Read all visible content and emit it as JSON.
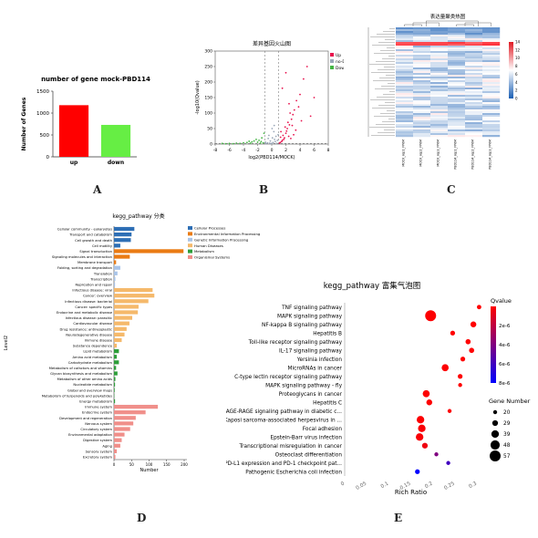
{
  "panel_labels": [
    "A",
    "B",
    "C",
    "D",
    "E"
  ],
  "chart_data": [
    {
      "id": "A",
      "type": "bar",
      "title": "number of gene mock-PBD114",
      "xlabel": "",
      "ylabel": "Number of Genes",
      "categories": [
        "up",
        "down"
      ],
      "values": [
        1180,
        730
      ],
      "colors": [
        "#ff0000",
        "#66ee44"
      ],
      "ylim": [
        0,
        1500
      ],
      "yticks": [
        "0",
        "500",
        "1000",
        "1500"
      ]
    },
    {
      "id": "B",
      "type": "scatter",
      "title": "差异基因火山图",
      "xlabel": "log2(PBD114/MOCK)",
      "ylabel": "-log10(Qvalue)",
      "xlim": [
        -8,
        8
      ],
      "ylim": [
        0,
        300
      ],
      "xticks": [
        "-8",
        "-6",
        "-4",
        "-2",
        "0",
        "2",
        "4",
        "6",
        "8"
      ],
      "yticks": [
        "0",
        "50",
        "100",
        "150",
        "200",
        "250",
        "300"
      ],
      "legend": [
        "Up",
        "no-DEGS",
        "Down"
      ],
      "legend_colors": [
        "#e8114d",
        "#9aa7b8",
        "#44b544"
      ],
      "legend_position": "top-right",
      "series": [
        {
          "name": "Up",
          "points": [
            [
              1.2,
              5
            ],
            [
              1.5,
              12
            ],
            [
              1.8,
              20
            ],
            [
              2,
              35
            ],
            [
              2.2,
              50
            ],
            [
              2.5,
              62
            ],
            [
              1.4,
              8
            ],
            [
              1.7,
              15
            ],
            [
              2.8,
              80
            ],
            [
              3,
              95
            ],
            [
              1.6,
              28
            ],
            [
              2.1,
              42
            ],
            [
              2.4,
              25
            ],
            [
              3.2,
              110
            ],
            [
              3.5,
              140
            ],
            [
              2.7,
              18
            ],
            [
              1.9,
              55
            ],
            [
              2.3,
              70
            ],
            [
              4,
              160
            ],
            [
              4.5,
              210
            ],
            [
              5,
              250
            ],
            [
              3.8,
              120
            ],
            [
              2.6,
              100
            ],
            [
              1.3,
              40
            ],
            [
              1.1,
              3
            ],
            [
              3.1,
              30
            ],
            [
              2.9,
              60
            ],
            [
              5.5,
              90
            ],
            [
              4.2,
              75
            ],
            [
              1.5,
              180
            ],
            [
              2,
              230
            ],
            [
              6,
              150
            ],
            [
              3.4,
              45
            ],
            [
              1.25,
              22
            ],
            [
              2.45,
              130
            ]
          ]
        },
        {
          "name": "no-DEGS",
          "points": [
            [
              0,
              2
            ],
            [
              0.2,
              5
            ],
            [
              -0.3,
              3
            ],
            [
              0.5,
              8
            ],
            [
              -0.6,
              4
            ],
            [
              0.8,
              12
            ],
            [
              -0.9,
              6
            ],
            [
              0.1,
              20
            ],
            [
              0.4,
              15
            ],
            [
              -0.2,
              10
            ],
            [
              0.6,
              25
            ],
            [
              -0.5,
              18
            ],
            [
              0.9,
              30
            ],
            [
              0.3,
              40
            ],
            [
              -0.1,
              1
            ],
            [
              0.7,
              2
            ],
            [
              -0.8,
              1
            ],
            [
              0.05,
              50
            ],
            [
              -0.4,
              28
            ],
            [
              0.35,
              60
            ]
          ]
        },
        {
          "name": "Down",
          "points": [
            [
              -1.2,
              4
            ],
            [
              -1.5,
              8
            ],
            [
              -1.8,
              12
            ],
            [
              -2,
              6
            ],
            [
              -2.5,
              10
            ],
            [
              -3,
              3
            ],
            [
              -3.5,
              5
            ],
            [
              -4,
              4
            ],
            [
              -4.5,
              2
            ],
            [
              -5,
              3
            ],
            [
              -5.5,
              1
            ],
            [
              -6,
              2
            ],
            [
              -6.5,
              1
            ],
            [
              -7,
              2
            ],
            [
              -2.2,
              15
            ],
            [
              -1.4,
              20
            ],
            [
              -1.1,
              35
            ],
            [
              -2.8,
              7
            ],
            [
              -3.2,
              9
            ],
            [
              -1.6,
              3
            ]
          ]
        }
      ]
    },
    {
      "id": "C",
      "type": "heatmap",
      "title": "表达量聚类热图",
      "columns": [
        "MOCK_rep1_FPKM",
        "MOCK_rep2_FPKM",
        "MOCK_rep3_FPKM",
        "PBD114_rep1_FPKM",
        "PBD114_rep2_FPKM",
        "PBD114_rep3_FPKM"
      ],
      "color_scale": {
        "min": 0,
        "max": 14,
        "ticks": [
          "0",
          "2",
          "4",
          "6",
          "8",
          "10",
          "12",
          "14"
        ]
      },
      "colors": [
        "#1a5fb4",
        "#ffffff",
        "#e01b24"
      ]
    },
    {
      "id": "D",
      "type": "bar",
      "orientation": "horizontal",
      "title": "kegg_pathway 分类",
      "xlabel": "Number",
      "ylabel": "Level2",
      "xlim": [
        0,
        200
      ],
      "xticks": [
        "0",
        "50",
        "100",
        "150",
        "200"
      ],
      "legend": [
        "Cellular Processes",
        "Environmental Information Processing",
        "Genetic Information Processing",
        "Human Diseases",
        "Metabolism",
        "Organismal Systems"
      ],
      "legend_colors": [
        "#2e6fb5",
        "#ea7b14",
        "#a9c4e8",
        "#f5b96b",
        "#2e9e3a",
        "#f08f8a"
      ],
      "legend_position": "top-right",
      "categories": [
        "Cellular community - eukaryotes",
        "Transport and catabolism",
        "Cell growth and death",
        "Cell motility",
        "Signal transduction",
        "Signaling molecules and interaction",
        "Membrane transport",
        "Folding, sorting and degradation",
        "Translation",
        "Transcription",
        "Replication and repair",
        "Infectious disease: viral",
        "Cancer: overview",
        "Infectious disease: bacterial",
        "Cancer: specific types",
        "Endocrine and metabolic disease",
        "Infectious disease: parasitic",
        "Cardiovascular disease",
        "Drug resistance: antineoplastic",
        "Neurodegenerative disease",
        "Immune disease",
        "Substance dependence",
        "Lipid metabolism",
        "Amino acid metabolism",
        "Carbohydrate metabolism",
        "Metabolism of cofactors and vitamins",
        "Glycan biosynthesis and metabolism",
        "Metabolism of other amino acids",
        "Nucleotide metabolism",
        "Global and overview maps",
        "Metabolism of terpenoids and polyketides",
        "Energy metabolism",
        "Immune system",
        "Endocrine system",
        "Development and regeneration",
        "Nervous system",
        "Circulatory system",
        "Environmental adaptation",
        "Digestive system",
        "Aging",
        "Sensory system",
        "Excretory system"
      ],
      "values": [
        58,
        50,
        48,
        18,
        198,
        45,
        6,
        18,
        10,
        4,
        3,
        110,
        115,
        98,
        70,
        68,
        52,
        44,
        36,
        30,
        22,
        8,
        14,
        8,
        14,
        6,
        10,
        4,
        3,
        2,
        1,
        3,
        125,
        90,
        62,
        55,
        46,
        30,
        22,
        18,
        8,
        4
      ],
      "groups": [
        0,
        0,
        0,
        0,
        1,
        1,
        1,
        2,
        2,
        2,
        2,
        3,
        3,
        3,
        3,
        3,
        3,
        3,
        3,
        3,
        3,
        3,
        4,
        4,
        4,
        4,
        4,
        4,
        4,
        4,
        4,
        4,
        5,
        5,
        5,
        5,
        5,
        5,
        5,
        5,
        5,
        5
      ]
    },
    {
      "id": "E",
      "type": "scatter",
      "title": "kegg_pathway 富集气泡图",
      "xlabel": "Rich Ratio",
      "ylabel": "",
      "xlim": [
        0,
        0.3
      ],
      "xticks": [
        "0",
        "0.05",
        "0.1",
        "0.15",
        "0.2",
        "0.25",
        "0.3"
      ],
      "categories": [
        "TNF signaling pathway",
        "MAPK signaling pathway",
        "NF-kappa B signaling pathway",
        "Hepatitis B",
        "Toll-like receptor signaling pathway",
        "IL-17 signaling pathway",
        "Yersinia infection",
        "MicroRNAs in cancer",
        "C-type lectin receptor signaling pathway",
        "MAPK signaling pathway - fly",
        "Proteoglycans in cancer",
        "Hepatitis C",
        "AGE-RAGE signaling pathway in diabetic c...",
        "Kaposi sarcoma-associated herpesvirus in ...",
        "Focal adhesion",
        "Epstein-Barr virus infection",
        "Transcriptional misregulation in cancer",
        "Osteoclast differentiation",
        "PD-L1 expression and PD-1 checkpoint pat...",
        "Pathogenic Escherichia coli infection"
      ],
      "rich_ratio": [
        0.305,
        0.195,
        0.292,
        0.245,
        0.28,
        0.288,
        0.268,
        0.228,
        0.262,
        0.262,
        0.185,
        0.192,
        0.238,
        0.172,
        0.175,
        0.17,
        0.182,
        0.208,
        0.235,
        0.165
      ],
      "gene_number": [
        22,
        57,
        30,
        24,
        26,
        26,
        24,
        36,
        24,
        20,
        36,
        30,
        20,
        39,
        39,
        39,
        29,
        20,
        20,
        24
      ],
      "qvalue": [
        1e-10,
        5e-08,
        1e-09,
        1e-09,
        5e-09,
        5e-09,
        5e-09,
        5e-08,
        2e-08,
        2e-08,
        5e-08,
        5e-08,
        1e-07,
        1e-07,
        2e-07,
        2e-07,
        5e-07,
        4e-06,
        6e-06,
        8e-06
      ],
      "size_legend_title": "Gene Number",
      "size_legend": [
        "20",
        "29",
        "39",
        "48",
        "57"
      ],
      "color_legend_title": "Qvalue",
      "color_legend_ticks": [
        "2e-6",
        "4e-6",
        "6e-6",
        "8e-6"
      ],
      "colors": [
        "#ff0000",
        "#0000ff"
      ]
    }
  ]
}
